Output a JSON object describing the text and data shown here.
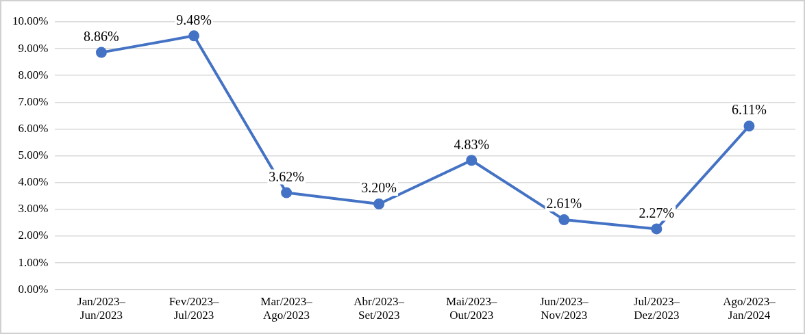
{
  "chart_data": {
    "type": "line",
    "categories": [
      "Jan/2023–Jun/2023",
      "Fev/2023–Jul/2023",
      "Mar/2023–Ago/2023",
      "Abr/2023–Set/2023",
      "Mai/2023–Out/2023",
      "Jun/2023–Nov/2023",
      "Jul/2023–Dez/2023",
      "Ago/2023–Jan/2024"
    ],
    "series": [
      {
        "color": "#4472c4",
        "values": [
          8.86,
          9.48,
          3.62,
          3.2,
          4.83,
          2.61,
          2.27,
          6.11
        ],
        "value_labels": [
          "8.86%",
          "9.48%",
          "3.62%",
          "3.20%",
          "4.83%",
          "2.61%",
          "2.27%",
          "6.11%"
        ]
      }
    ],
    "ylim": [
      0,
      10
    ],
    "yticks": [
      {
        "value": 0,
        "label": "0.00%"
      },
      {
        "value": 1,
        "label": "1.00%"
      },
      {
        "value": 2,
        "label": "2.00%"
      },
      {
        "value": 3,
        "label": "3.00%"
      },
      {
        "value": 4,
        "label": "4.00%"
      },
      {
        "value": 5,
        "label": "5.00%"
      },
      {
        "value": 6,
        "label": "6.00%"
      },
      {
        "value": 7,
        "label": "7.00%"
      },
      {
        "value": 8,
        "label": "8.00%"
      },
      {
        "value": 9,
        "label": "9.00%"
      },
      {
        "value": 10,
        "label": "10.00%"
      }
    ],
    "grid": "y",
    "legend": false,
    "marker": "circle",
    "line_style": "solid"
  }
}
